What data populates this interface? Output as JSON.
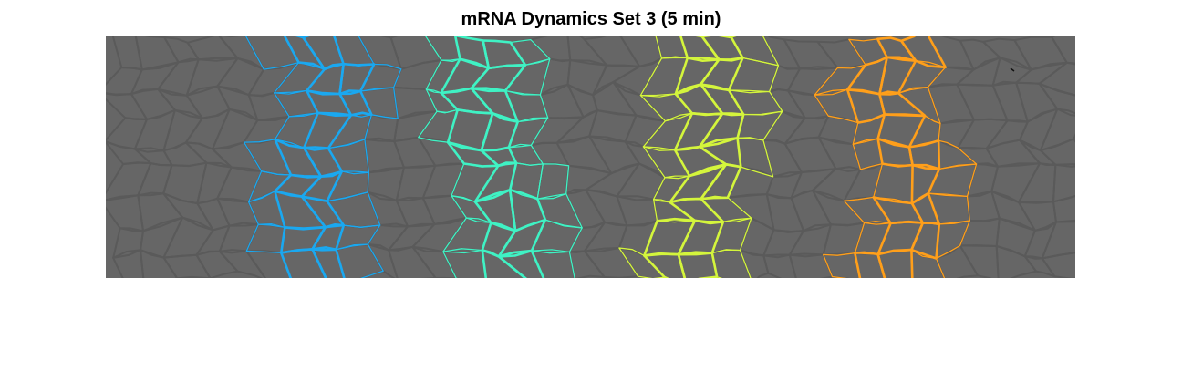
{
  "figure": {
    "title": "mRNA Dynamics Set 3 (5 min)"
  },
  "image": {
    "description_icon": "segmented-cell-tissue-image",
    "background_color": "#666666",
    "membrane_color": "#5a5a5a",
    "stripes": [
      {
        "id": "stripe-1",
        "color": "#1aa8f0"
      },
      {
        "id": "stripe-2",
        "color": "#3ff2c4"
      },
      {
        "id": "stripe-3",
        "color": "#d4f53c"
      },
      {
        "id": "stripe-4",
        "color": "#ff9f1a"
      }
    ]
  }
}
